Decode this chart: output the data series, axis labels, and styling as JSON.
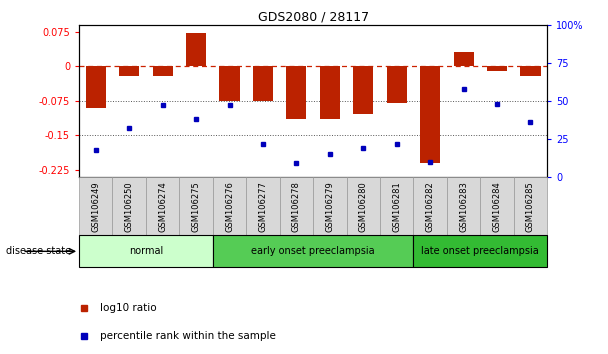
{
  "title": "GDS2080 / 28117",
  "samples": [
    "GSM106249",
    "GSM106250",
    "GSM106274",
    "GSM106275",
    "GSM106276",
    "GSM106277",
    "GSM106278",
    "GSM106279",
    "GSM106280",
    "GSM106281",
    "GSM106282",
    "GSM106283",
    "GSM106284",
    "GSM106285"
  ],
  "log10_ratio": [
    -0.09,
    -0.02,
    -0.02,
    0.073,
    -0.075,
    -0.075,
    -0.115,
    -0.115,
    -0.103,
    -0.08,
    -0.21,
    0.03,
    -0.01,
    -0.02
  ],
  "percentile_rank": [
    18,
    32,
    47,
    38,
    47,
    22,
    9,
    15,
    19,
    22,
    10,
    58,
    48,
    36
  ],
  "ylim_left": [
    -0.24,
    0.09
  ],
  "ylim_right": [
    0,
    100
  ],
  "yticks_left": [
    0.075,
    0.0,
    -0.075,
    -0.15,
    -0.225
  ],
  "yticks_right": [
    100,
    75,
    50,
    25,
    0
  ],
  "bar_color": "#bb2200",
  "dot_color": "#0000bb",
  "hline_color": "#cc2200",
  "dotted_line_color": "#555555",
  "groups": [
    {
      "label": "normal",
      "start": 0,
      "end": 3,
      "color": "#ccffcc"
    },
    {
      "label": "early onset preeclampsia",
      "start": 4,
      "end": 9,
      "color": "#55cc55"
    },
    {
      "label": "late onset preeclampsia",
      "start": 10,
      "end": 13,
      "color": "#33bb33"
    }
  ],
  "legend_items": [
    {
      "label": "log10 ratio",
      "color": "#bb2200"
    },
    {
      "label": "percentile rank within the sample",
      "color": "#0000bb"
    }
  ],
  "fig_width": 6.08,
  "fig_height": 3.54,
  "dpi": 100
}
